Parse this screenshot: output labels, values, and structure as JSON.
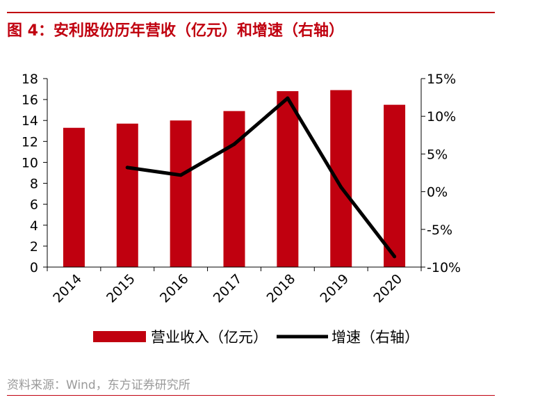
{
  "title": "图 4：安利股份历年营收（亿元）和增速（右轴）",
  "source": "资料来源：Wind，东方证券研究所",
  "colors": {
    "bar": "#c0000f",
    "line": "#000000",
    "accent": "#c0000f"
  },
  "chart_data": {
    "type": "bar+line",
    "categories": [
      "2014",
      "2015",
      "2016",
      "2017",
      "2018",
      "2019",
      "2020"
    ],
    "series": [
      {
        "name": "营业收入（亿元）",
        "type": "bar",
        "axis": "left",
        "values": [
          13.3,
          13.7,
          14.0,
          14.9,
          16.8,
          16.9,
          15.5
        ]
      },
      {
        "name": "增速（右轴）",
        "type": "line",
        "axis": "right",
        "values": [
          null,
          3.2,
          2.2,
          6.3,
          12.4,
          0.6,
          -8.6
        ]
      }
    ],
    "y_left": {
      "range": [
        0,
        18
      ],
      "ticks": [
        "0",
        "2",
        "4",
        "6",
        "8",
        "10",
        "12",
        "14",
        "16",
        "18"
      ]
    },
    "y_right": {
      "range": [
        -10,
        15
      ],
      "ticks": [
        "-10%",
        "-5%",
        "0%",
        "5%",
        "10%",
        "15%"
      ]
    },
    "grid": false,
    "legend_position": "bottom"
  }
}
